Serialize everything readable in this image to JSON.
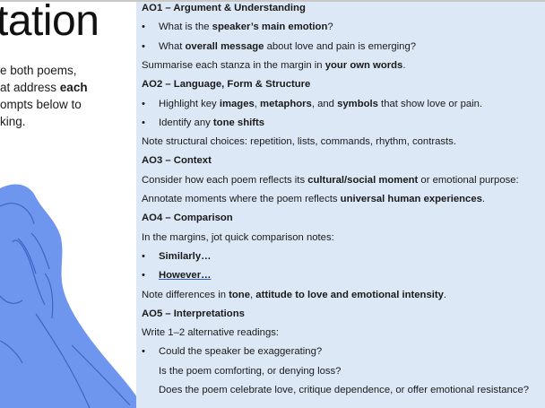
{
  "title": "tation",
  "intro": [
    [
      {
        "t": "e both poems,"
      }
    ],
    [
      {
        "t": "at address "
      },
      {
        "t": "each",
        "b": true
      }
    ],
    [
      {
        "t": "ompts below to"
      }
    ],
    [
      {
        "t": "king."
      }
    ]
  ],
  "colors": {
    "panel_bg": "#dde8f6",
    "figure": "#6f96ee",
    "figure_line": "#3f63c4"
  },
  "panel": {
    "lines": [
      {
        "kind": "heading",
        "segs": [
          {
            "t": "AO1 – Argument & Understanding",
            "b": true
          }
        ]
      },
      {
        "kind": "bullet",
        "segs": [
          {
            "t": "What is the "
          },
          {
            "t": "speaker’s main emotion",
            "b": true
          },
          {
            "t": "?"
          }
        ]
      },
      {
        "kind": "bullet",
        "segs": [
          {
            "t": "What "
          },
          {
            "t": "overall message",
            "b": true
          },
          {
            "t": " about love and pain is emerging?"
          }
        ]
      },
      {
        "kind": "text",
        "segs": [
          {
            "t": "Summarise each stanza in the margin in "
          },
          {
            "t": "your own words",
            "b": true
          },
          {
            "t": "."
          }
        ]
      },
      {
        "kind": "heading",
        "segs": [
          {
            "t": "AO2 – Language, Form & Structure",
            "b": true
          }
        ]
      },
      {
        "kind": "bullet",
        "segs": [
          {
            "t": "Highlight key "
          },
          {
            "t": "images",
            "b": true
          },
          {
            "t": ", "
          },
          {
            "t": "metaphors",
            "b": true
          },
          {
            "t": ", and "
          },
          {
            "t": "symbols",
            "b": true
          },
          {
            "t": " that show love or pain."
          }
        ]
      },
      {
        "kind": "bullet",
        "segs": [
          {
            "t": "Identify any "
          },
          {
            "t": "tone shifts",
            "b": true
          }
        ]
      },
      {
        "kind": "text",
        "segs": [
          {
            "t": "Note structural choices: repetition, lists, commands, rhythm, contrasts."
          }
        ]
      },
      {
        "kind": "heading",
        "segs": [
          {
            "t": "AO3 – Context",
            "b": true
          }
        ]
      },
      {
        "kind": "text",
        "segs": [
          {
            "t": "Consider how each poem reflects its "
          },
          {
            "t": "cultural/social moment",
            "b": true
          },
          {
            "t": " or emotional purpose:"
          }
        ]
      },
      {
        "kind": "text",
        "segs": [
          {
            "t": "Annotate moments where the poem reflects "
          },
          {
            "t": "universal human experiences",
            "b": true
          },
          {
            "t": "."
          }
        ]
      },
      {
        "kind": "heading",
        "segs": [
          {
            "t": "AO4 – Comparison",
            "b": true
          }
        ]
      },
      {
        "kind": "text",
        "segs": [
          {
            "t": "In the margins, jot quick comparison notes:"
          }
        ]
      },
      {
        "kind": "bullet",
        "segs": [
          {
            "t": "Similarly…",
            "b": true
          }
        ]
      },
      {
        "kind": "bullet",
        "segs": [
          {
            "t": "However…",
            "b": true,
            "u": true
          }
        ]
      },
      {
        "kind": "text",
        "segs": [
          {
            "t": "Note differences in "
          },
          {
            "t": "tone",
            "b": true
          },
          {
            "t": ", "
          },
          {
            "t": "attitude to love and emotional intensity",
            "b": true
          },
          {
            "t": "."
          }
        ]
      },
      {
        "kind": "heading",
        "segs": [
          {
            "t": "AO5 – Interpretations",
            "b": true
          }
        ]
      },
      {
        "kind": "text",
        "segs": [
          {
            "t": "Write 1–2 alternative readings:"
          }
        ]
      },
      {
        "kind": "bullet",
        "segs": [
          {
            "t": "Could the speaker be exaggerating?"
          }
        ]
      },
      {
        "kind": "indent",
        "segs": [
          {
            "t": "Is the poem comforting, or denying loss?"
          }
        ]
      },
      {
        "kind": "indent",
        "segs": [
          {
            "t": "Does the poem celebrate love, critique dependence, or offer emotional resistance?"
          }
        ]
      }
    ]
  }
}
